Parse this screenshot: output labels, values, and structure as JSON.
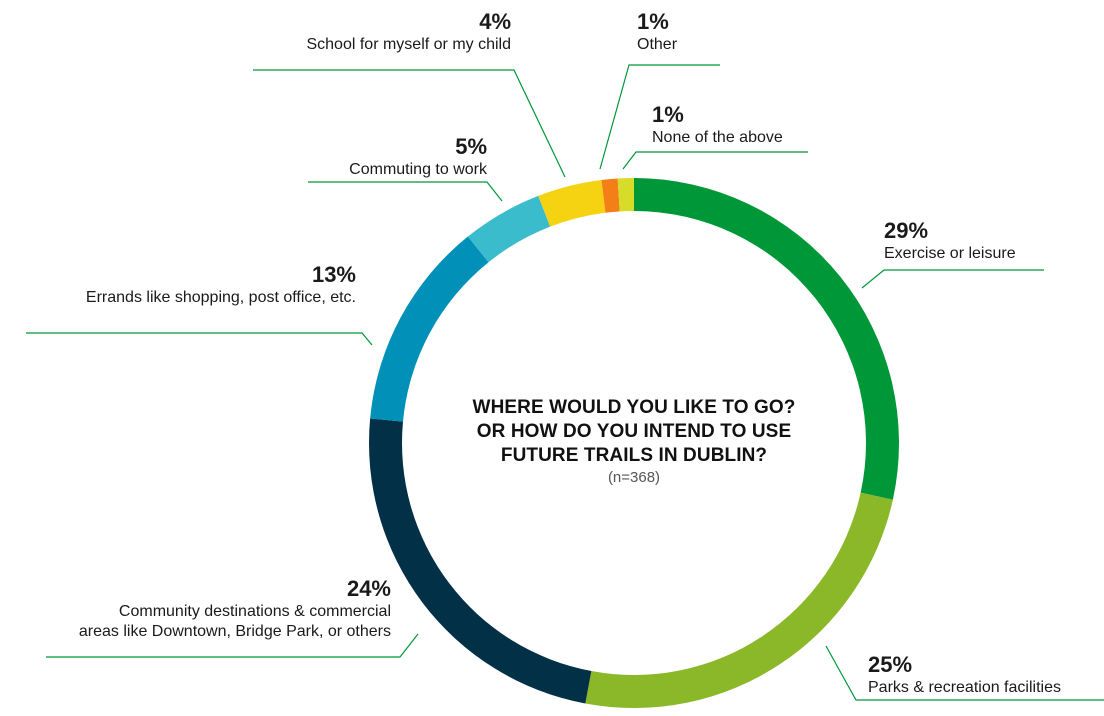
{
  "chart_data": {
    "type": "pie",
    "donut": true,
    "title_lines": [
      "WHERE WOULD YOU LIKE TO GO?",
      "OR HOW DO YOU INTEND TO USE",
      "FUTURE TRAILS IN DUBLIN?"
    ],
    "sample_note": "(n=368)",
    "slices": [
      {
        "label_lines": [
          "Exercise or leisure"
        ],
        "value": 29,
        "value_label": "29%",
        "color": "#009739"
      },
      {
        "label_lines": [
          "Parks & recreation facilities"
        ],
        "value": 25,
        "value_label": "25%",
        "color": "#8AB828"
      },
      {
        "label_lines": [
          "Community destinations & commercial",
          "areas like  Downtown, Bridge Park, or others"
        ],
        "value": 24,
        "value_label": "24%",
        "color": "#023047"
      },
      {
        "label_lines": [
          "Errands like shopping, post office, etc."
        ],
        "value": 13,
        "value_label": "13%",
        "color": "#0090B8"
      },
      {
        "label_lines": [
          "Commuting to work"
        ],
        "value": 5,
        "value_label": "5%",
        "color": "#3BBCCC"
      },
      {
        "label_lines": [
          "School for myself or my child"
        ],
        "value": 4,
        "value_label": "4%",
        "color": "#F5D312"
      },
      {
        "label_lines": [
          "Other"
        ],
        "value": 1,
        "value_label": "1%",
        "color": "#F57F17"
      },
      {
        "label_lines": [
          "None of the above"
        ],
        "value": 1,
        "value_label": "1%",
        "color": "#D6DC28"
      }
    ],
    "leader_color": "#009739"
  }
}
